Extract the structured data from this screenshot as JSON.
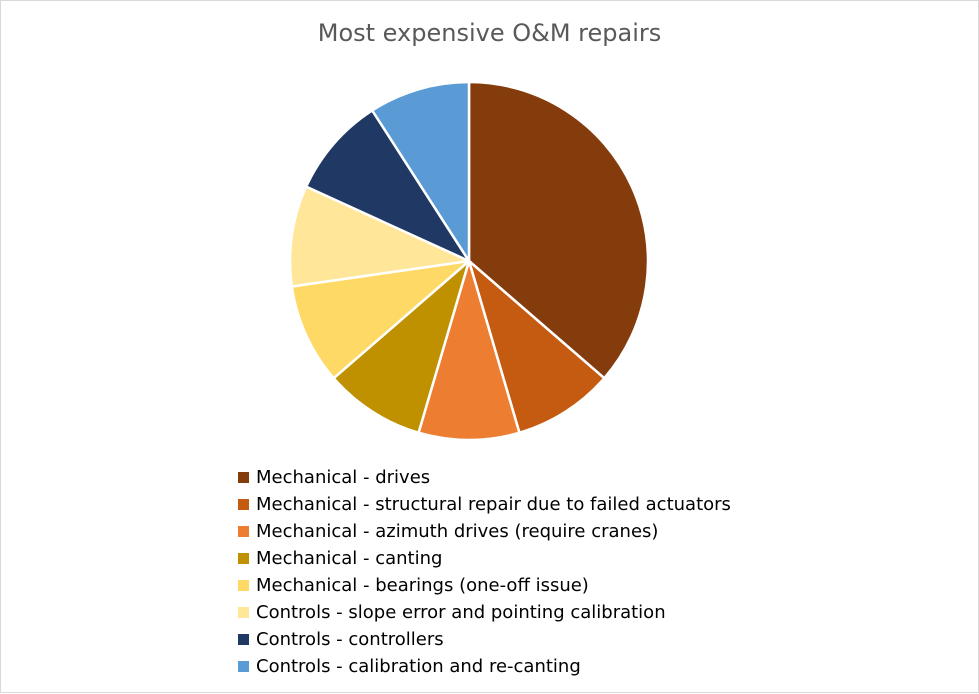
{
  "chart_data": {
    "type": "pie",
    "title": "Most expensive O&M repairs",
    "legend_position": "bottom",
    "slices": [
      {
        "label": "Mechanical - drives",
        "value": 36,
        "color": "#843C0C"
      },
      {
        "label": "Mechanical - structural repair due to failed actuators",
        "value": 9,
        "color": "#C55A11"
      },
      {
        "label": "Mechanical - azimuth drives (require cranes)",
        "value": 9,
        "color": "#ED7D31"
      },
      {
        "label": "Mechanical - canting",
        "value": 9,
        "color": "#BF9000"
      },
      {
        "label": "Mechanical - bearings (one-off issue)",
        "value": 9,
        "color": "#FFD966"
      },
      {
        "label": "Controls - slope error and pointing calibration",
        "value": 9,
        "color": "#FFE699"
      },
      {
        "label": "Controls - controllers",
        "value": 9,
        "color": "#203864"
      },
      {
        "label": "Controls - calibration and re-canting",
        "value": 9,
        "color": "#5B9BD5"
      }
    ]
  }
}
